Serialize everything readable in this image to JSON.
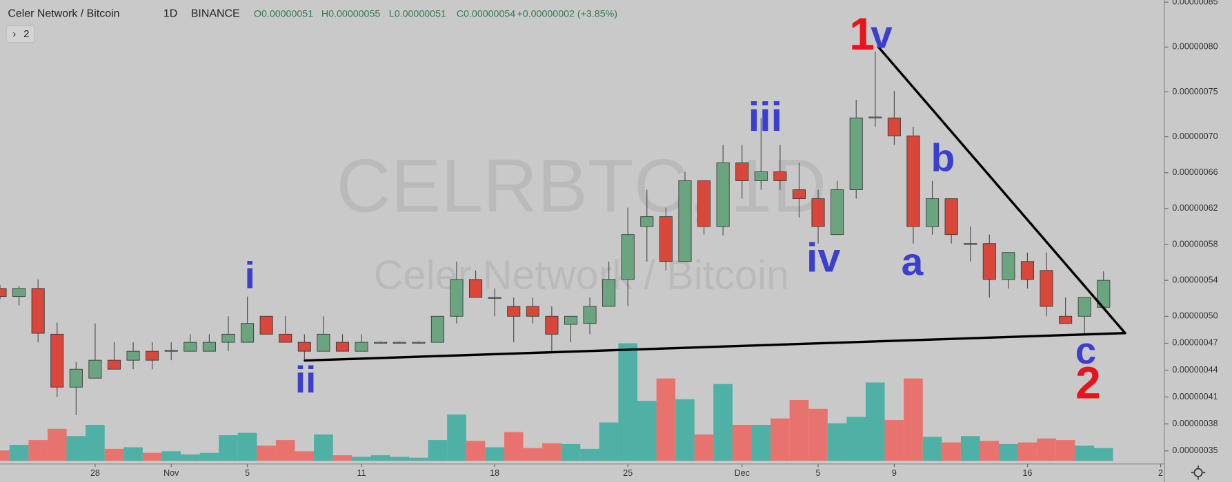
{
  "header": {
    "symbol": "Celer Network / Bitcoin",
    "interval": "1D",
    "exchange": "BINANCE",
    "ohlc": [
      {
        "key": "O",
        "value": "0.00000051"
      },
      {
        "key": "H",
        "value": "0.00000055"
      },
      {
        "key": "L",
        "value": "0.00000051"
      },
      {
        "key": "C",
        "value": "0.00000054"
      }
    ],
    "change": "+0.00000002 (+3.85%)",
    "indicator_count": "2"
  },
  "chart_data": {
    "type": "candlestick",
    "watermark": {
      "ticker": "CELRBTC, 1D",
      "name": "Celer Network / Bitcoin"
    },
    "open": [
      5.31e-07,
      5.22e-07,
      5.31e-07,
      4.8e-07,
      4.21e-07,
      4.31e-07,
      4.51e-07,
      4.51e-07,
      4.61e-07,
      4.61e-07,
      4.61e-07,
      4.61e-07,
      4.71e-07,
      4.71e-07,
      5e-07,
      4.8e-07,
      4.71e-07,
      4.61e-07,
      4.71e-07,
      4.61e-07,
      4.71e-07,
      4.71e-07,
      4.71e-07,
      4.71e-07,
      5e-07,
      5.41e-07,
      5.21e-07,
      5.11e-07,
      5.11e-07,
      5e-07,
      4.91e-07,
      4.92e-07,
      5.11e-07,
      5.41e-07,
      6e-07,
      6.11e-07,
      5.61e-07,
      6.51e-07,
      6e-07,
      6.71e-07,
      6.51e-07,
      6.61e-07,
      6.41e-07,
      6.31e-07,
      5.91e-07,
      6.41e-07,
      7.21e-07,
      7.21e-07,
      7.01e-07,
      6e-07,
      6.31e-07,
      5.81e-07,
      5.81e-07,
      5.41e-07,
      5.61e-07,
      5.51e-07,
      5e-07,
      5e-07,
      5.1e-07
    ],
    "high": [
      5.35e-07,
      5.34e-07,
      5.41e-07,
      4.93e-07,
      4.49e-07,
      4.92e-07,
      4.71e-07,
      4.71e-07,
      4.71e-07,
      4.71e-07,
      4.8e-07,
      4.8e-07,
      5e-07,
      5.22e-07,
      5e-07,
      5e-07,
      4.8e-07,
      5e-07,
      4.8e-07,
      4.8e-07,
      4.72e-07,
      4.72e-07,
      4.72e-07,
      5e-07,
      5.61e-07,
      5.51e-07,
      5.31e-07,
      5.21e-07,
      5.21e-07,
      5.11e-07,
      5e-07,
      5.21e-07,
      5.61e-07,
      6.21e-07,
      6.41e-07,
      6.21e-07,
      6.61e-07,
      6.51e-07,
      6.91e-07,
      6.91e-07,
      7.21e-07,
      6.91e-07,
      6.71e-07,
      6.41e-07,
      6.51e-07,
      7.41e-07,
      7.95e-07,
      7.51e-07,
      7.11e-07,
      6.51e-07,
      6.31e-07,
      6e-07,
      5.91e-07,
      5.71e-07,
      5.71e-07,
      5.71e-07,
      5.21e-07,
      5.21e-07,
      5.5e-07
    ],
    "low": [
      5.19e-07,
      5.12e-07,
      4.71e-07,
      4.1e-07,
      3.9e-07,
      4.31e-07,
      4.41e-07,
      4.41e-07,
      4.41e-07,
      4.51e-07,
      4.61e-07,
      4.61e-07,
      4.61e-07,
      4.71e-07,
      4.8e-07,
      4.71e-07,
      4.51e-07,
      4.61e-07,
      4.61e-07,
      4.61e-07,
      4.7e-07,
      4.7e-07,
      4.7e-07,
      4.71e-07,
      4.92e-07,
      5.21e-07,
      5e-07,
      4.71e-07,
      4.92e-07,
      4.61e-07,
      4.71e-07,
      4.8e-07,
      5.11e-07,
      5.11e-07,
      5.61e-07,
      5.51e-07,
      5.61e-07,
      5.91e-07,
      5.9e-07,
      6.31e-07,
      6.41e-07,
      6.41e-07,
      6.1e-07,
      5.81e-07,
      5.91e-07,
      6.31e-07,
      7.11e-07,
      6.91e-07,
      5.81e-07,
      5.91e-07,
      5.81e-07,
      5.61e-07,
      5.21e-07,
      5.31e-07,
      5.31e-07,
      5e-07,
      4.92e-07,
      4.8e-07,
      5.1e-07
    ],
    "close": [
      5.22e-07,
      5.31e-07,
      4.81e-07,
      4.21e-07,
      4.41e-07,
      4.51e-07,
      4.41e-07,
      4.61e-07,
      4.51e-07,
      4.62e-07,
      4.71e-07,
      4.71e-07,
      4.8e-07,
      4.92e-07,
      4.8e-07,
      4.71e-07,
      4.61e-07,
      4.8e-07,
      4.61e-07,
      4.71e-07,
      4.71e-07,
      4.71e-07,
      4.71e-07,
      5e-07,
      5.41e-07,
      5.21e-07,
      5.21e-07,
      5e-07,
      5e-07,
      4.8e-07,
      5e-07,
      5.11e-07,
      5.41e-07,
      5.91e-07,
      6.11e-07,
      5.61e-07,
      6.51e-07,
      6e-07,
      6.71e-07,
      6.51e-07,
      6.61e-07,
      6.51e-07,
      6.31e-07,
      6e-07,
      6.41e-07,
      7.21e-07,
      7.22e-07,
      7.01e-07,
      6e-07,
      6.31e-07,
      5.91e-07,
      5.81e-07,
      5.41e-07,
      5.71e-07,
      5.41e-07,
      5.11e-07,
      4.92e-07,
      5.21e-07,
      5.4e-07
    ],
    "volume": [
      13,
      20,
      26,
      40,
      31,
      45,
      15,
      17,
      10,
      12,
      8,
      10,
      32,
      35,
      19,
      26,
      12,
      33,
      7,
      5,
      7,
      5,
      4,
      26,
      58,
      25,
      17,
      36,
      16,
      22,
      21,
      15,
      48,
      147,
      75,
      103,
      77,
      33,
      96,
      45,
      45,
      53,
      76,
      65,
      47,
      55,
      98,
      51,
      103,
      30,
      23,
      31,
      25,
      21,
      23,
      28,
      26,
      19,
      16
    ],
    "xlim": [
      0,
      61.2
    ],
    "xticks": [
      {
        "value": 5,
        "label": "28"
      },
      {
        "value": 9,
        "label": "Nov"
      },
      {
        "value": 13,
        "label": "5"
      },
      {
        "value": 19,
        "label": "11"
      },
      {
        "value": 26,
        "label": "18"
      },
      {
        "value": 33,
        "label": "25"
      },
      {
        "value": 39,
        "label": "Dec"
      },
      {
        "value": 43,
        "label": "5"
      },
      {
        "value": 47,
        "label": "9"
      },
      {
        "value": 54,
        "label": "16"
      },
      {
        "value": 61,
        "label": "2"
      }
    ],
    "ylim": [
      3.354e-07,
      8.524e-07
    ],
    "yticks": [
      {
        "value": 8.5e-07,
        "label": "0.00000085"
      },
      {
        "value": 8e-07,
        "label": "0.00000080"
      },
      {
        "value": 7.5e-07,
        "label": "0.00000075"
      },
      {
        "value": 7e-07,
        "label": "0.00000070"
      },
      {
        "value": 6.6e-07,
        "label": "0.00000066"
      },
      {
        "value": 6.2e-07,
        "label": "0.00000062"
      },
      {
        "value": 5.8e-07,
        "label": "0.00000058"
      },
      {
        "value": 5.4e-07,
        "label": "0.00000054"
      },
      {
        "value": 5e-07,
        "label": "0.00000050"
      },
      {
        "value": 4.7e-07,
        "label": "0.00000047"
      },
      {
        "value": 4.4e-07,
        "label": "0.00000044"
      },
      {
        "value": 4.1e-07,
        "label": "0.00000041"
      },
      {
        "value": 3.8e-07,
        "label": "0.00000038"
      },
      {
        "value": 3.5e-07,
        "label": "0.00000035"
      }
    ],
    "up_color": "#6aa57f",
    "down_color": "#d9463a",
    "volume_up_color": "#4fb0a5",
    "volume_down_color": "#e8736e",
    "annotations": [
      "1",
      "v",
      "i",
      "ii",
      "iii",
      "iv",
      "a",
      "b",
      "c",
      "2"
    ]
  }
}
